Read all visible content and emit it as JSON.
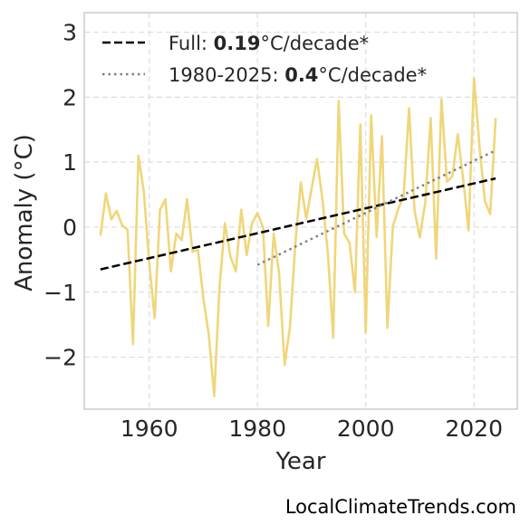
{
  "chart_data": {
    "type": "line",
    "xlabel": "Year",
    "ylabel": "Anomaly (°C)",
    "xlim": [
      1948,
      2028
    ],
    "ylim": [
      -2.8,
      3.3
    ],
    "x_ticks": [
      1960,
      1980,
      2000,
      2020
    ],
    "x_tick_labels": [
      "1960",
      "1980",
      "2000",
      "2020"
    ],
    "y_ticks": [
      -2,
      -1,
      0,
      1,
      2,
      3
    ],
    "y_tick_labels": [
      "−2",
      "−1",
      "0",
      "1",
      "2",
      "3"
    ],
    "grid": true,
    "legend_position": "top-left",
    "series": [
      {
        "style": "solid",
        "color": "#f0d67a",
        "x": [
          1951,
          1952,
          1953,
          1954,
          1955,
          1956,
          1957,
          1958,
          1959,
          1960,
          1961,
          1962,
          1963,
          1964,
          1965,
          1966,
          1967,
          1968,
          1969,
          1970,
          1971,
          1972,
          1973,
          1974,
          1975,
          1976,
          1977,
          1978,
          1979,
          1980,
          1981,
          1982,
          1983,
          1984,
          1985,
          1986,
          1987,
          1988,
          1989,
          1990,
          1991,
          1992,
          1993,
          1994,
          1995,
          1996,
          1997,
          1998,
          1999,
          2000,
          2001,
          2002,
          2003,
          2004,
          2005,
          2006,
          2007,
          2008,
          2009,
          2010,
          2011,
          2012,
          2013,
          2014,
          2015,
          2016,
          2017,
          2018,
          2019,
          2020,
          2021,
          2022,
          2023,
          2024
        ],
        "y": [
          -0.13,
          0.52,
          0.12,
          0.25,
          0.03,
          -0.04,
          -1.8,
          1.1,
          0.55,
          -0.55,
          -1.4,
          0.27,
          0.43,
          -0.68,
          -0.1,
          -0.2,
          0.43,
          -0.38,
          -0.35,
          -1.1,
          -1.65,
          -2.6,
          -0.9,
          0.06,
          -0.45,
          -0.68,
          0.27,
          -0.43,
          0.06,
          0.22,
          0.0,
          -1.52,
          -0.1,
          -0.72,
          -2.12,
          -1.55,
          -0.25,
          0.69,
          0.13,
          0.6,
          1.05,
          0.43,
          -0.4,
          -1.7,
          1.94,
          -0.1,
          -0.24,
          -1.0,
          1.58,
          -1.62,
          1.72,
          -0.15,
          1.4,
          -1.55,
          0.01,
          0.28,
          0.47,
          1.83,
          0.26,
          -0.16,
          0.38,
          1.68,
          -0.48,
          1.97,
          0.7,
          0.78,
          1.43,
          0.73,
          -0.05,
          2.29,
          1.25,
          0.4,
          0.2,
          1.68
        ]
      },
      {
        "name": "Full: 0.19°C/decade*",
        "style": "dashed",
        "color": "#000000",
        "x": [
          1951,
          2024
        ],
        "y": [
          -0.65,
          0.75
        ]
      },
      {
        "name": "1980-2025: 0.4°C/decade*",
        "style": "dotted",
        "color": "#808080",
        "x": [
          1980,
          2024
        ],
        "y": [
          -0.58,
          1.18
        ]
      }
    ]
  },
  "legend": [
    {
      "prefix": "Full: ",
      "value": "0.19",
      "suffix": "°C/decade*"
    },
    {
      "prefix": "1980-2025: ",
      "value": "0.4",
      "suffix": "°C/decade*"
    }
  ],
  "credit": "LocalClimateTrends.com"
}
